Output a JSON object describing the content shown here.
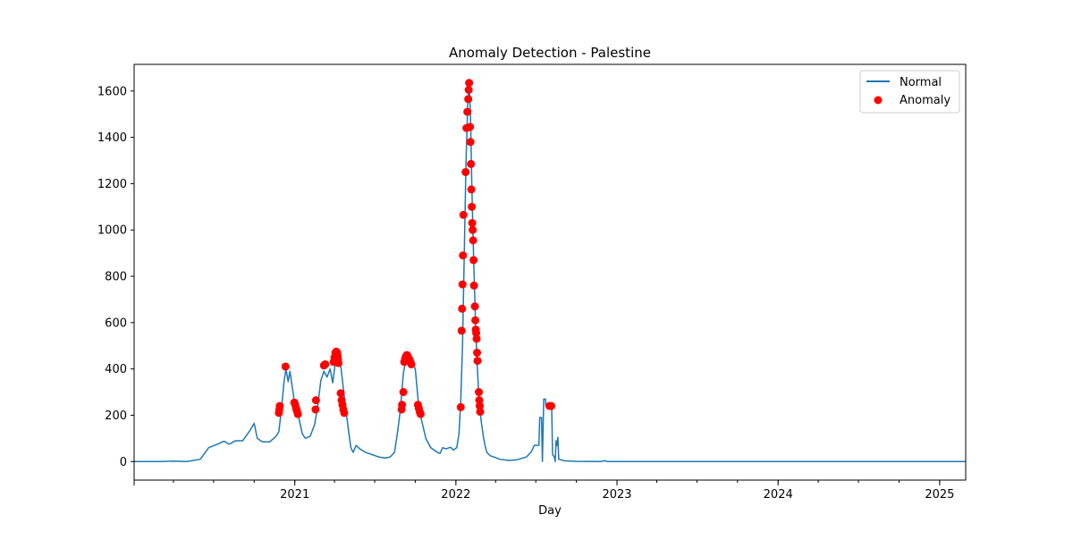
{
  "chart_data": {
    "type": "line",
    "title": "Anomaly Detection - Palestine",
    "xlabel": "Day",
    "ylabel": "",
    "xlim": [
      "2020-01-03",
      "2025-03-01"
    ],
    "ylim": [
      -80,
      1715
    ],
    "x_ticks": [
      {
        "date": "2021-01-01",
        "label": "2021"
      },
      {
        "date": "2022-01-01",
        "label": "2022"
      },
      {
        "date": "2023-01-01",
        "label": "2023"
      },
      {
        "date": "2024-01-01",
        "label": "2024"
      },
      {
        "date": "2025-01-01",
        "label": "2025"
      }
    ],
    "y_ticks": [
      0,
      200,
      400,
      600,
      800,
      1000,
      1200,
      1400,
      1600
    ],
    "legend": {
      "position": "top-right",
      "entries": [
        "Normal",
        "Anomaly"
      ]
    },
    "colors": {
      "normal": "#1f77b4",
      "anomaly": "#ff0000"
    },
    "series": [
      {
        "name": "Normal",
        "kind": "line",
        "points": [
          [
            "2020-01-03",
            0
          ],
          [
            "2020-03-01",
            0
          ],
          [
            "2020-04-01",
            2
          ],
          [
            "2020-05-01",
            0
          ],
          [
            "2020-06-01",
            10
          ],
          [
            "2020-06-20",
            60
          ],
          [
            "2020-07-10",
            75
          ],
          [
            "2020-07-25",
            88
          ],
          [
            "2020-08-05",
            75
          ],
          [
            "2020-08-20",
            90
          ],
          [
            "2020-09-05",
            90
          ],
          [
            "2020-09-20",
            130
          ],
          [
            "2020-10-01",
            165
          ],
          [
            "2020-10-08",
            100
          ],
          [
            "2020-10-20",
            85
          ],
          [
            "2020-11-05",
            85
          ],
          [
            "2020-11-20",
            110
          ],
          [
            "2020-11-26",
            130
          ],
          [
            "2020-12-02",
            230
          ],
          [
            "2020-12-08",
            350
          ],
          [
            "2020-12-12",
            400
          ],
          [
            "2020-12-17",
            345
          ],
          [
            "2020-12-21",
            390
          ],
          [
            "2020-12-31",
            260
          ],
          [
            "2021-01-05",
            225
          ],
          [
            "2021-01-10",
            190
          ],
          [
            "2021-01-18",
            120
          ],
          [
            "2021-01-25",
            100
          ],
          [
            "2021-02-05",
            110
          ],
          [
            "2021-02-15",
            160
          ],
          [
            "2021-02-22",
            240
          ],
          [
            "2021-03-01",
            350
          ],
          [
            "2021-03-08",
            390
          ],
          [
            "2021-03-15",
            365
          ],
          [
            "2021-03-22",
            400
          ],
          [
            "2021-03-28",
            340
          ],
          [
            "2021-04-03",
            430
          ],
          [
            "2021-04-09",
            470
          ],
          [
            "2021-04-16",
            400
          ],
          [
            "2021-04-22",
            300
          ],
          [
            "2021-04-27",
            220
          ],
          [
            "2021-05-03",
            130
          ],
          [
            "2021-05-08",
            60
          ],
          [
            "2021-05-13",
            40
          ],
          [
            "2021-05-20",
            70
          ],
          [
            "2021-05-28",
            55
          ],
          [
            "2021-06-10",
            40
          ],
          [
            "2021-06-25",
            30
          ],
          [
            "2021-07-10",
            20
          ],
          [
            "2021-07-25",
            15
          ],
          [
            "2021-08-05",
            20
          ],
          [
            "2021-08-15",
            40
          ],
          [
            "2021-08-22",
            130
          ],
          [
            "2021-08-28",
            220
          ],
          [
            "2021-09-04",
            380
          ],
          [
            "2021-09-10",
            445
          ],
          [
            "2021-09-17",
            460
          ],
          [
            "2021-09-24",
            430
          ],
          [
            "2021-10-01",
            400
          ],
          [
            "2021-10-08",
            255
          ],
          [
            "2021-10-15",
            180
          ],
          [
            "2021-10-25",
            100
          ],
          [
            "2021-11-05",
            60
          ],
          [
            "2021-11-20",
            40
          ],
          [
            "2021-11-26",
            35
          ],
          [
            "2021-12-02",
            60
          ],
          [
            "2021-12-10",
            55
          ],
          [
            "2021-12-20",
            62
          ],
          [
            "2021-12-26",
            50
          ],
          [
            "2022-01-03",
            60
          ],
          [
            "2022-01-08",
            120
          ],
          [
            "2022-01-12",
            260
          ],
          [
            "2022-01-16",
            500
          ],
          [
            "2022-01-20",
            900
          ],
          [
            "2022-01-24",
            1300
          ],
          [
            "2022-01-28",
            1550
          ],
          [
            "2022-01-31",
            1640
          ],
          [
            "2022-02-03",
            1500
          ],
          [
            "2022-02-06",
            1200
          ],
          [
            "2022-02-09",
            960
          ],
          [
            "2022-02-12",
            760
          ],
          [
            "2022-02-15",
            560
          ],
          [
            "2022-02-18",
            430
          ],
          [
            "2022-02-22",
            280
          ],
          [
            "2022-02-27",
            180
          ],
          [
            "2022-03-04",
            110
          ],
          [
            "2022-03-08",
            70
          ],
          [
            "2022-03-12",
            40
          ],
          [
            "2022-03-20",
            25
          ],
          [
            "2022-03-28",
            20
          ],
          [
            "2022-04-10",
            10
          ],
          [
            "2022-05-01",
            5
          ],
          [
            "2022-05-20",
            8
          ],
          [
            "2022-06-10",
            20
          ],
          [
            "2022-06-20",
            40
          ],
          [
            "2022-06-28",
            70
          ],
          [
            "2022-07-08",
            70
          ],
          [
            "2022-07-10",
            190
          ],
          [
            "2022-07-14",
            190
          ],
          [
            "2022-07-16",
            0
          ],
          [
            "2022-07-19",
            270
          ],
          [
            "2022-07-23",
            270
          ],
          [
            "2022-07-24",
            240
          ],
          [
            "2022-08-06",
            240
          ],
          [
            "2022-08-08",
            30
          ],
          [
            "2022-08-12",
            20
          ],
          [
            "2022-08-14",
            0
          ],
          [
            "2022-08-16",
            90
          ],
          [
            "2022-08-18",
            70
          ],
          [
            "2022-08-20",
            105
          ],
          [
            "2022-08-22",
            10
          ],
          [
            "2022-09-05",
            3
          ],
          [
            "2022-10-01",
            1
          ],
          [
            "2022-11-25",
            0
          ],
          [
            "2022-12-05",
            4
          ],
          [
            "2022-12-10",
            0
          ],
          [
            "2025-03-01",
            0
          ]
        ]
      },
      {
        "name": "Anomaly",
        "kind": "scatter",
        "points": [
          [
            "2020-11-26",
            210
          ],
          [
            "2020-11-27",
            225
          ],
          [
            "2020-11-28",
            240
          ],
          [
            "2020-12-11",
            410
          ],
          [
            "2020-12-31",
            255
          ],
          [
            "2021-01-02",
            245
          ],
          [
            "2021-01-04",
            230
          ],
          [
            "2021-01-06",
            218
          ],
          [
            "2021-01-08",
            205
          ],
          [
            "2021-02-17",
            225
          ],
          [
            "2021-02-18",
            265
          ],
          [
            "2021-03-08",
            415
          ],
          [
            "2021-03-11",
            420
          ],
          [
            "2021-03-30",
            430
          ],
          [
            "2021-04-01",
            450
          ],
          [
            "2021-04-03",
            470
          ],
          [
            "2021-04-05",
            475
          ],
          [
            "2021-04-07",
            470
          ],
          [
            "2021-04-08",
            455
          ],
          [
            "2021-04-09",
            440
          ],
          [
            "2021-04-10",
            425
          ],
          [
            "2021-04-15",
            295
          ],
          [
            "2021-04-17",
            265
          ],
          [
            "2021-04-19",
            245
          ],
          [
            "2021-04-21",
            225
          ],
          [
            "2021-04-23",
            210
          ],
          [
            "2021-08-31",
            225
          ],
          [
            "2021-09-01",
            245
          ],
          [
            "2021-09-04",
            300
          ],
          [
            "2021-09-06",
            430
          ],
          [
            "2021-09-08",
            445
          ],
          [
            "2021-09-10",
            455
          ],
          [
            "2021-09-12",
            460
          ],
          [
            "2021-09-14",
            455
          ],
          [
            "2021-09-16",
            445
          ],
          [
            "2021-09-18",
            440
          ],
          [
            "2021-09-20",
            430
          ],
          [
            "2021-09-22",
            420
          ],
          [
            "2021-10-07",
            245
          ],
          [
            "2021-10-09",
            230
          ],
          [
            "2021-10-11",
            215
          ],
          [
            "2021-10-13",
            205
          ],
          [
            "2022-01-12",
            235
          ],
          [
            "2022-01-14",
            565
          ],
          [
            "2022-01-15",
            660
          ],
          [
            "2022-01-16",
            765
          ],
          [
            "2022-01-17",
            890
          ],
          [
            "2022-01-18",
            1065
          ],
          [
            "2022-01-23",
            1250
          ],
          [
            "2022-01-25",
            1440
          ],
          [
            "2022-01-27",
            1510
          ],
          [
            "2022-01-29",
            1565
          ],
          [
            "2022-01-30",
            1605
          ],
          [
            "2022-01-31",
            1635
          ],
          [
            "2022-02-02",
            1445
          ],
          [
            "2022-02-03",
            1380
          ],
          [
            "2022-02-04",
            1285
          ],
          [
            "2022-02-05",
            1175
          ],
          [
            "2022-02-06",
            1100
          ],
          [
            "2022-02-07",
            1030
          ],
          [
            "2022-02-08",
            1000
          ],
          [
            "2022-02-09",
            955
          ],
          [
            "2022-02-10",
            870
          ],
          [
            "2022-02-11",
            760
          ],
          [
            "2022-02-13",
            670
          ],
          [
            "2022-02-14",
            610
          ],
          [
            "2022-02-15",
            570
          ],
          [
            "2022-02-16",
            555
          ],
          [
            "2022-02-17",
            530
          ],
          [
            "2022-02-18",
            470
          ],
          [
            "2022-02-19",
            435
          ],
          [
            "2022-02-22",
            300
          ],
          [
            "2022-02-23",
            265
          ],
          [
            "2022-02-24",
            240
          ],
          [
            "2022-02-25",
            215
          ],
          [
            "2022-08-01",
            240
          ],
          [
            "2022-08-05",
            240
          ]
        ]
      }
    ]
  }
}
